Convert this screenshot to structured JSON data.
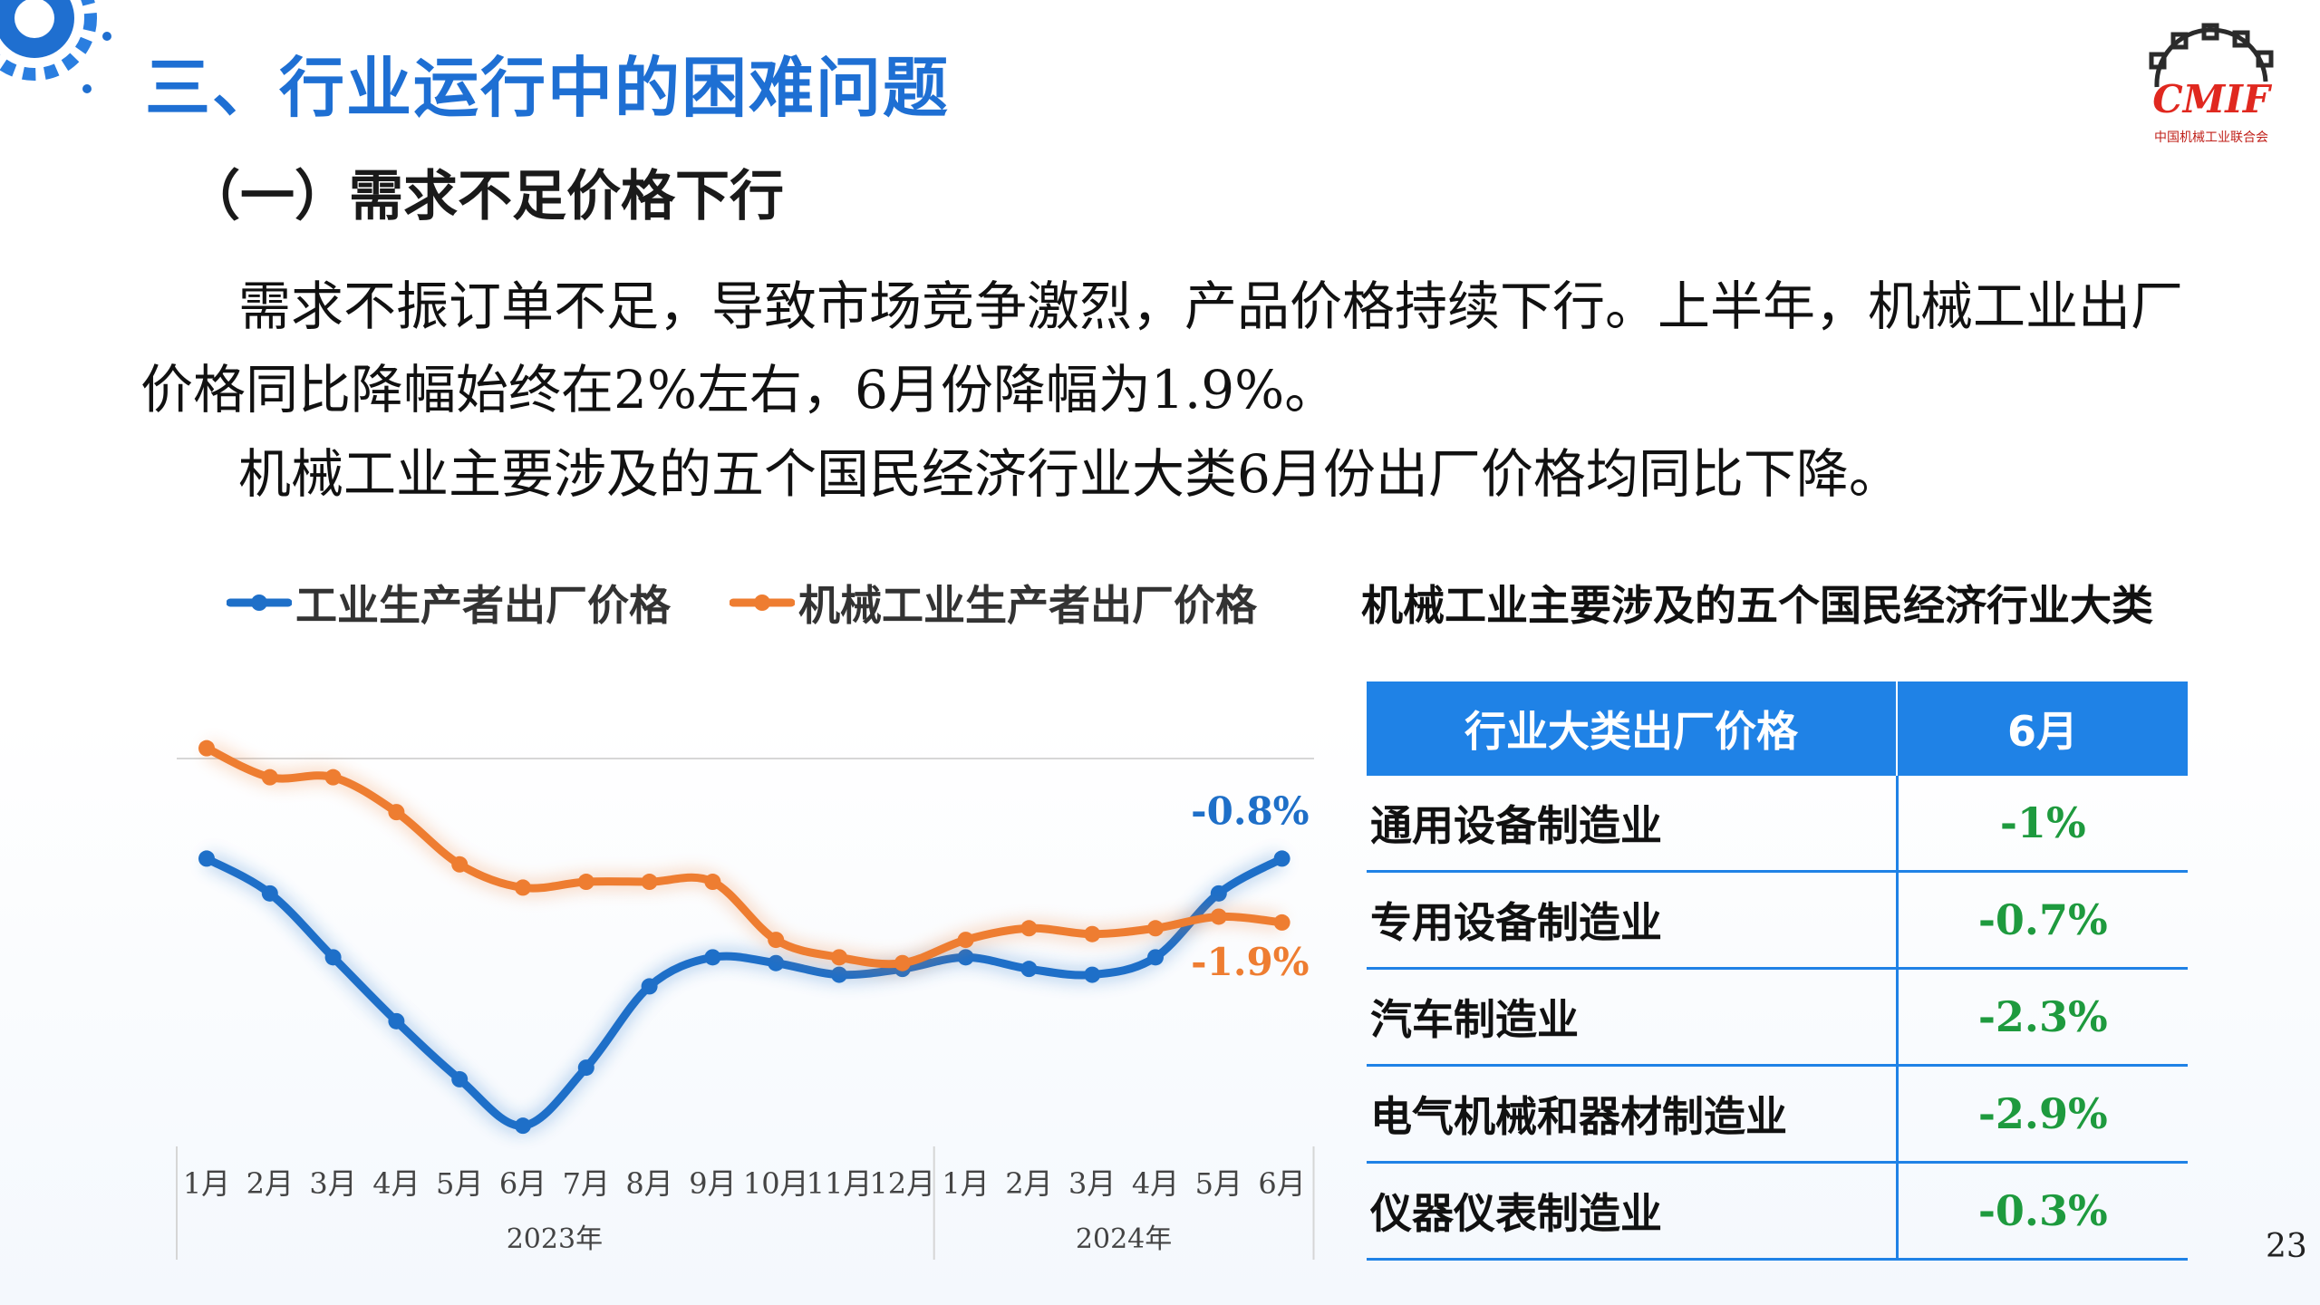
{
  "header": {
    "title": "三、行业运行中的困难问题",
    "subtitle": "（一）需求不足价格下行",
    "logo_text": "CMIF",
    "logo_caption": "中国机械工业联合会"
  },
  "body": {
    "para1": "需求不振订单不足，导致市场竞争激烈，产品价格持续下行。上半年，机械工业出厂价格同比降幅始终在2%左右，6月份降幅为1.9%。",
    "para2": "机械工业主要涉及的五个国民经济行业大类6月份出厂价格均同比下降。"
  },
  "colors": {
    "blue": "#1e6fc8",
    "orange": "#ee7d31",
    "accent": "#1f82e6",
    "green": "#1e9a3e"
  },
  "chart_data": {
    "type": "line",
    "categories": [
      "1月",
      "2月",
      "3月",
      "4月",
      "5月",
      "6月",
      "7月",
      "8月",
      "9月",
      "10月",
      "11月",
      "12月",
      "1月",
      "2月",
      "3月",
      "4月",
      "5月",
      "6月"
    ],
    "groups": [
      {
        "label": "2023年",
        "span": 12
      },
      {
        "label": "2024年",
        "span": 6
      }
    ],
    "series": [
      {
        "name": "工业生产者出厂价格",
        "color": "#1e6fc8",
        "values": [
          -0.8,
          -1.4,
          -2.5,
          -3.6,
          -4.6,
          -5.4,
          -4.4,
          -3.0,
          -2.5,
          -2.6,
          -2.8,
          -2.7,
          -2.5,
          -2.7,
          -2.8,
          -2.5,
          -1.4,
          -0.8
        ]
      },
      {
        "name": "机械工业生产者出厂价格",
        "color": "#ee7d31",
        "values": [
          1.1,
          0.6,
          0.6,
          0.0,
          -0.9,
          -1.3,
          -1.2,
          -1.2,
          -1.2,
          -2.2,
          -2.5,
          -2.6,
          -2.2,
          -2.0,
          -2.1,
          -2.0,
          -1.8,
          -1.9
        ]
      }
    ],
    "annotations": [
      {
        "series": 0,
        "label": "-0.8%"
      },
      {
        "series": 1,
        "label": "-1.9%"
      }
    ],
    "ylim": [
      -5.6,
      1.5
    ],
    "grid": false,
    "legend_position": "top"
  },
  "table": {
    "title": "机械工业主要涉及的五个国民经济行业大类",
    "headers": [
      "行业大类出厂价格",
      "6月"
    ],
    "rows": [
      {
        "name": "通用设备制造业",
        "value": "-1%"
      },
      {
        "name": "专用设备制造业",
        "value": "-0.7%"
      },
      {
        "name": "汽车制造业",
        "value": "-2.3%"
      },
      {
        "name": "电气机械和器材制造业",
        "value": "-2.9%"
      },
      {
        "name": "仪器仪表制造业",
        "value": "-0.3%"
      }
    ]
  },
  "footer": {
    "page_number": "23"
  }
}
